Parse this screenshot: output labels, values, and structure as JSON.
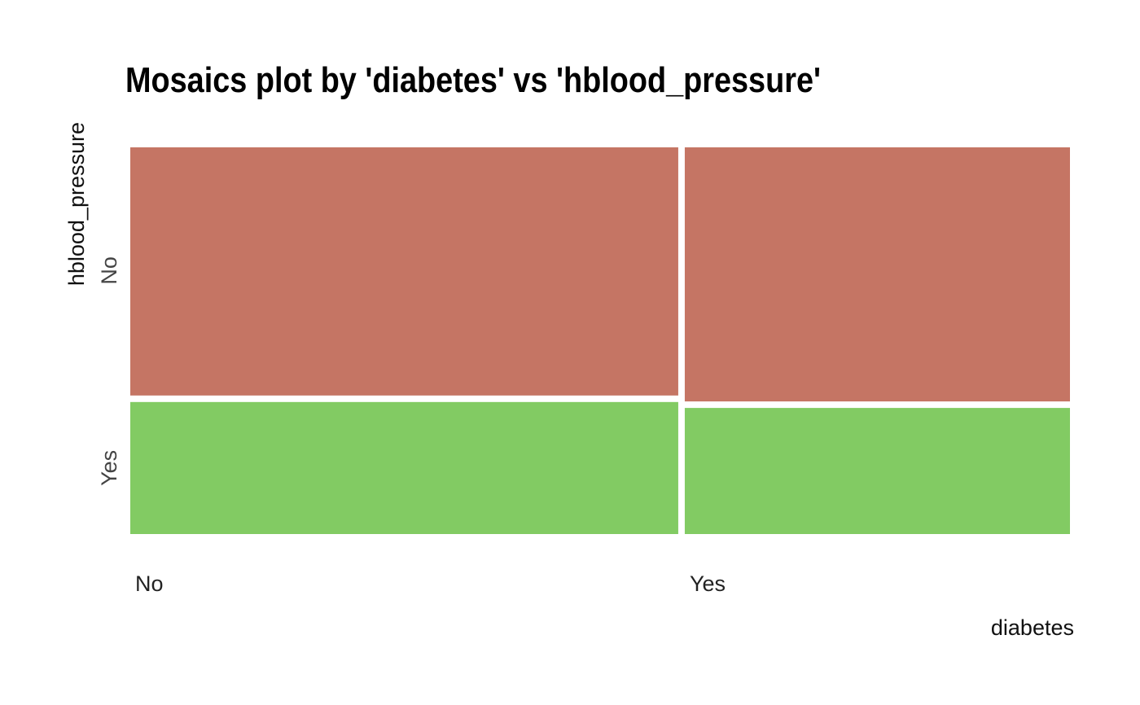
{
  "chart_data": {
    "type": "mosaic",
    "title": "Mosaics plot by 'diabetes' vs 'hblood_pressure'",
    "xlabel": "diabetes",
    "ylabel": "hblood_pressure",
    "x_categories": [
      "No",
      "Yes"
    ],
    "y_categories": [
      "No",
      "Yes"
    ],
    "x_proportions": [
      0.585,
      0.415
    ],
    "cells": [
      {
        "x": "No",
        "y": "No",
        "proportion": 0.645,
        "color": "#c57564"
      },
      {
        "x": "No",
        "y": "Yes",
        "proportion": 0.355,
        "color": "#82cb63"
      },
      {
        "x": "Yes",
        "y": "No",
        "proportion": 0.66,
        "color": "#c57564"
      },
      {
        "x": "Yes",
        "y": "Yes",
        "proportion": 0.34,
        "color": "#82cb63"
      }
    ],
    "legend": "none",
    "grid": false
  }
}
